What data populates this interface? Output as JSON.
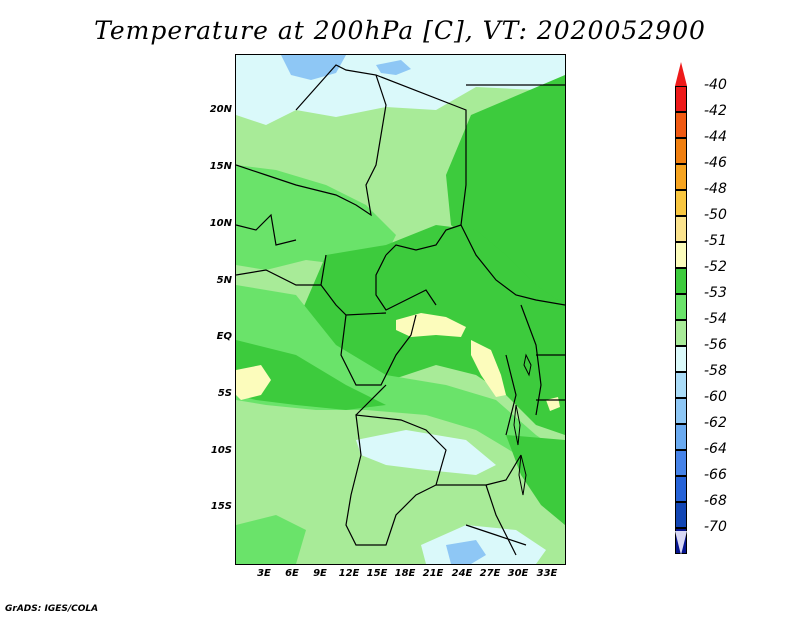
{
  "title": "Temperature at 200hPa [C], VT: 2020052900",
  "credit": "GrADS: IGES/COLA",
  "map": {
    "y_ticks": [
      "20N",
      "15N",
      "10N",
      "5N",
      "EQ",
      "5S",
      "10S",
      "15S"
    ],
    "x_ticks": [
      "3E",
      "6E",
      "9E",
      "12E",
      "15E",
      "18E",
      "21E",
      "24E",
      "27E",
      "30E",
      "33E"
    ]
  },
  "colorbar": {
    "levels": [
      "-40",
      "-42",
      "-44",
      "-46",
      "-48",
      "-50",
      "-51",
      "-52",
      "-53",
      "-54",
      "-56",
      "-58",
      "-60",
      "-62",
      "-64",
      "-66",
      "-68",
      "-70"
    ],
    "colors": {
      "top_triangle": "#ee1a1a",
      "bottom_triangle": "#d8d8f4",
      "boxes": [
        "#ee1a1a",
        "#f05a13",
        "#f07f10",
        "#f6a420",
        "#f8c640",
        "#fbe38e",
        "#fcfcbc",
        "#3dcb3d",
        "#6ae36a",
        "#a8eb98",
        "#daf9fa",
        "#aadcf8",
        "#8ec7f5",
        "#6aaaf0",
        "#4683e8",
        "#2663d8",
        "#1246b4",
        "#07158f"
      ]
    }
  },
  "regions": {
    "base": "#a8eb98",
    "light_cyan": "#daf9fa",
    "blue": "#8ec7f5",
    "green_mid": "#6ae36a",
    "green_dark": "#3dcb3d",
    "yellow": "#fcfcbc"
  }
}
